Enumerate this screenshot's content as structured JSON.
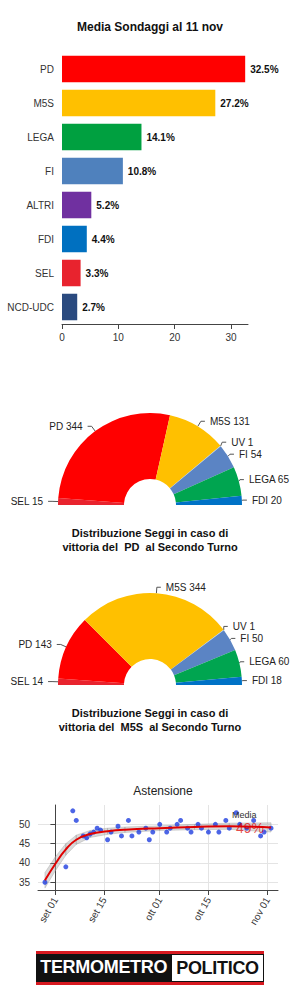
{
  "chart_data": [
    {
      "type": "bar",
      "title": "Media Sondaggi al 11 nov",
      "orientation": "horizontal",
      "categories": [
        "PD",
        "M5S",
        "LEGA",
        "FI",
        "ALTRI",
        "FDI",
        "SEL",
        "NCD-UDC"
      ],
      "values": [
        32.5,
        27.2,
        14.1,
        10.8,
        5.2,
        4.4,
        3.3,
        2.7
      ],
      "value_labels": [
        "32.5%",
        "27.2%",
        "14.1%",
        "10.8%",
        "5.2%",
        "4.4%",
        "3.3%",
        "2.7%"
      ],
      "colors": [
        "#ff0000",
        "#ffc000",
        "#00a040",
        "#4f81bd",
        "#7030a0",
        "#0070c0",
        "#e8232e",
        "#2a4a7f"
      ],
      "xlim": [
        0,
        33
      ],
      "xticks": [
        0,
        10,
        20,
        30
      ],
      "grid": false,
      "data_labels": true
    },
    {
      "type": "pie",
      "title": "Distribuzione Seggi in caso di\nvittoria del  PD  al Secondo Turno",
      "categories": [
        "SEL",
        "PD",
        "M5S",
        "UV",
        "FI",
        "LEGA",
        "FDI"
      ],
      "values": [
        15,
        344,
        131,
        1,
        54,
        65,
        20
      ],
      "value_labels": [
        "SEL 15",
        "PD 344",
        "M5S 131",
        "UV 1",
        "FI 54",
        "LEGA 65",
        "FDI 20"
      ],
      "colors": [
        "#e8232e",
        "#ff0000",
        "#ffc000",
        "#a6c8e8",
        "#5b84c4",
        "#00a550",
        "#0072c6"
      ],
      "data_labels": true
    },
    {
      "type": "pie",
      "title": "Distribuzione Seggi in caso di\nvittoria del  M5S  al Secondo Turno",
      "categories": [
        "SEL",
        "PD",
        "M5S",
        "UV",
        "FI",
        "LEGA",
        "FDI"
      ],
      "values": [
        14,
        143,
        344,
        1,
        50,
        60,
        18
      ],
      "value_labels": [
        "SEL 14",
        "PD 143",
        "M5S 344",
        "UV 1",
        "FI 50",
        "LEGA 60",
        "FDI 18"
      ],
      "colors": [
        "#e8232e",
        "#ff0000",
        "#ffc000",
        "#a6c8e8",
        "#5b84c4",
        "#00a550",
        "#0072c6"
      ],
      "data_labels": true
    },
    {
      "type": "scatter",
      "title": "Astensione",
      "color": "#1f3fe0",
      "x": [
        -3,
        3,
        5,
        6,
        8,
        9,
        10,
        11,
        12,
        13,
        15,
        16,
        18,
        19,
        21,
        22,
        24,
        26,
        27,
        28,
        30,
        32,
        33,
        35,
        36,
        38,
        39,
        41,
        42,
        44,
        46,
        47,
        49,
        50,
        52,
        53,
        55,
        57,
        59,
        60,
        62
      ],
      "values": [
        35,
        39,
        53.5,
        51,
        47,
        46.5,
        47.5,
        48,
        49,
        48.5,
        46,
        48,
        49.5,
        47,
        51,
        47,
        48,
        49,
        46,
        48,
        50,
        48,
        49,
        50,
        51,
        49,
        48,
        50,
        49,
        48,
        50,
        48,
        51,
        49,
        53,
        50,
        49,
        51,
        47,
        48,
        49
      ],
      "xlim": [
        -5,
        64
      ],
      "xticks": [
        {
          "value": 0,
          "label": "set 01"
        },
        {
          "value": 14,
          "label": "set 15"
        },
        {
          "value": 30,
          "label": "ott 01"
        },
        {
          "value": 44,
          "label": "ott 15"
        },
        {
          "value": 61,
          "label": "nov 01"
        }
      ],
      "ylim": [
        33,
        55
      ],
      "yticks": [
        35,
        40,
        45,
        50
      ],
      "grid": true,
      "trend": {
        "type": "line",
        "color": "#e00000",
        "x": [
          -3,
          0,
          3,
          6,
          10,
          15,
          20,
          30,
          40,
          50,
          62
        ],
        "values": [
          35.5,
          39.8,
          43.5,
          46,
          47.5,
          48.2,
          48.6,
          49,
          49.3,
          49.5,
          49.2
        ],
        "lower": [
          33.5,
          38,
          42,
          44.8,
          46.6,
          47.4,
          47.9,
          48.4,
          48.6,
          48.7,
          48
        ],
        "upper": [
          37.5,
          41.6,
          45,
          47.2,
          48.4,
          49,
          49.3,
          49.6,
          50,
          50.3,
          50.4
        ]
      },
      "annotations": [
        {
          "label": "Media"
        },
        {
          "value": 49,
          "label": "49%",
          "color": "#e00000"
        }
      ]
    }
  ],
  "footer": [
    "TERMOMETRO",
    "POLITICO"
  ]
}
